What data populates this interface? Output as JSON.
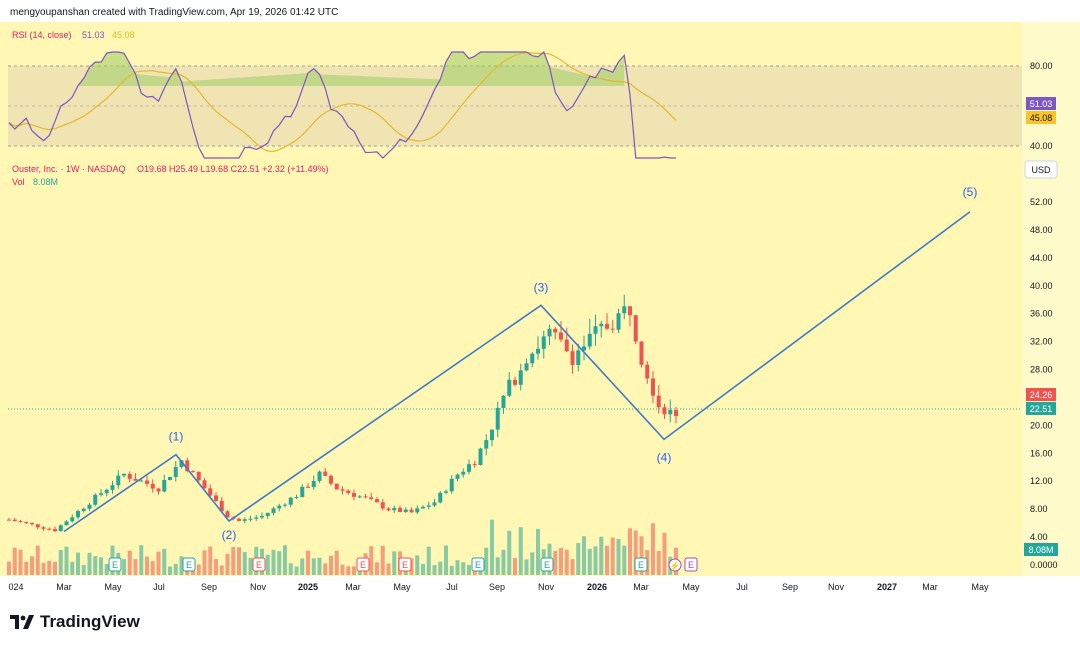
{
  "header": {
    "attribution": "mengyoupanshan created with TradingView.com, Apr 19, 2026 01:42 UTC"
  },
  "rsi": {
    "label": "RSI (14, close)",
    "value": "51.03",
    "ma_value": "45.08",
    "ticks": [
      "80.00",
      "60.00",
      "40.00"
    ],
    "line_color": "#7e57c2",
    "ma_color": "#e5b92b",
    "badge_value": "51.03",
    "badge_ma": "45.08"
  },
  "price": {
    "symbol": "Ouster, Inc. · 1W · NASDAQ",
    "ohlc": "O19.68  H25.49  L19.68  C22.51  +2.32 (+11.49%)",
    "vol_label": "Vol",
    "vol_value": "8.08M",
    "currency": "USD",
    "ticks": [
      "52.00",
      "48.00",
      "44.00",
      "40.00",
      "36.00",
      "32.00",
      "28.00",
      "24.00",
      "20.00",
      "16.00",
      "12.00",
      "8.00",
      "4.00",
      "0.0000"
    ],
    "badge_high": "24.26",
    "badge_last": "22.51",
    "badge_vol": "8.08M",
    "up_color": "#26a69a",
    "down_color": "#ef5350"
  },
  "time_axis": [
    "024",
    "Mar",
    "May",
    "Jul",
    "Sep",
    "Nov",
    "2025",
    "Mar",
    "May",
    "Jul",
    "Sep",
    "Nov",
    "2026",
    "Mar",
    "May",
    "Jul",
    "Sep",
    "Nov",
    "2027",
    "Mar",
    "May"
  ],
  "events": [
    "E",
    "E",
    "E",
    "E",
    "E",
    "E",
    "E",
    "E",
    "E"
  ],
  "waves": [
    "(1)",
    "(2)",
    "(3)",
    "(4)",
    "(5)"
  ],
  "branding": "TradingView",
  "chart_data": {
    "type": "candlestick",
    "interval": "1W",
    "ylim": [
      0,
      56
    ],
    "elliott_wave_points": [
      {
        "label": "",
        "date": "2024-02",
        "price": 4.8
      },
      {
        "label": "(1)",
        "date": "2024-07",
        "price": 15.8
      },
      {
        "label": "(2)",
        "date": "2024-09",
        "price": 6.3
      },
      {
        "label": "(3)",
        "date": "2025-10",
        "price": 37.2
      },
      {
        "label": "(4)",
        "date": "2026-04",
        "price": 18.0
      },
      {
        "label": "(5)",
        "date": "2026-05",
        "price": 50.6
      }
    ]
  }
}
